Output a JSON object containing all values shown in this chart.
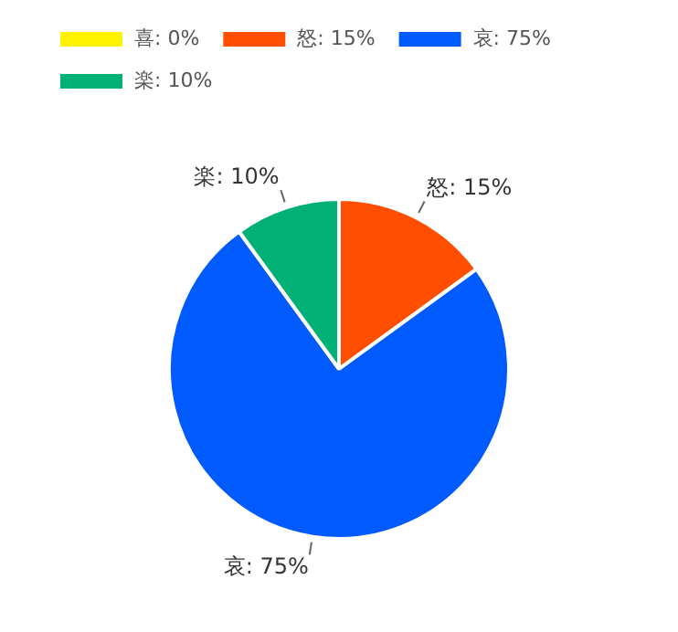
{
  "chart_data": {
    "type": "pie",
    "categories": [
      "喜: 0%",
      "怒: 15%",
      "哀: 75%",
      "楽: 10%"
    ],
    "values": [
      0,
      15,
      75,
      10
    ],
    "colors": [
      "#fff200",
      "#ff4e00",
      "#005bff",
      "#00b074"
    ],
    "legend": "top left"
  }
}
